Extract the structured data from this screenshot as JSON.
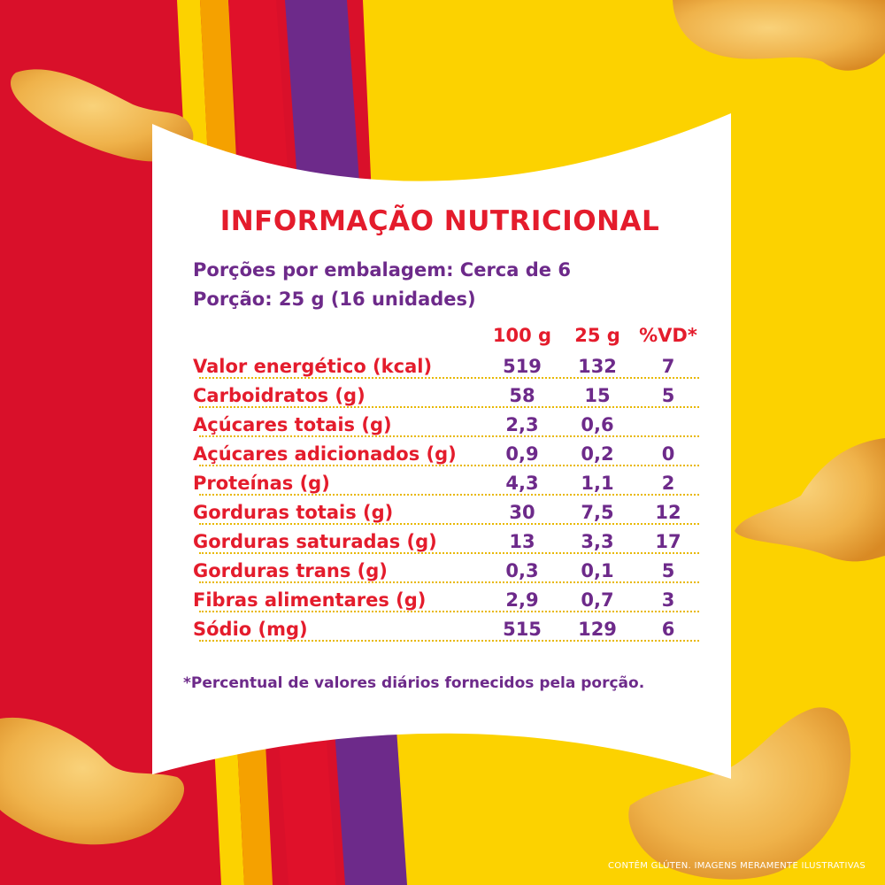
{
  "colors": {
    "red": "#d9102a",
    "yellow": "#fcd200",
    "purple": "#6d2a8a",
    "orange": "#f5a100",
    "title_red": "#e41c2c",
    "chip": "#f1b44a"
  },
  "panel": {
    "title": "INFORMAÇÃO NUTRICIONAL",
    "servings_per_package": "Porções por embalagem: Cerca de 6",
    "serving_size": "Porção:  25 g (16 unidades)",
    "column_headers": [
      "100 g",
      "25 g",
      "%VD*"
    ],
    "rows": [
      {
        "label": "Valor energético (kcal)",
        "per100": "519",
        "perPortion": "132",
        "dv": "7"
      },
      {
        "label": "Carboidratos (g)",
        "per100": "58",
        "perPortion": "15",
        "dv": "5"
      },
      {
        "label": "Açúcares totais (g)",
        "per100": "2,3",
        "perPortion": "0,6",
        "dv": ""
      },
      {
        "label": "Açúcares adicionados (g)",
        "per100": "0,9",
        "perPortion": "0,2",
        "dv": "0"
      },
      {
        "label": "Proteínas (g)",
        "per100": "4,3",
        "perPortion": "1,1",
        "dv": "2"
      },
      {
        "label": "Gorduras totais (g)",
        "per100": "30",
        "perPortion": "7,5",
        "dv": "12"
      },
      {
        "label": "Gorduras saturadas (g)",
        "per100": "13",
        "perPortion": "3,3",
        "dv": "17"
      },
      {
        "label": "Gorduras trans (g)",
        "per100": "0,3",
        "perPortion": "0,1",
        "dv": "5"
      },
      {
        "label": "Fibras alimentares (g)",
        "per100": "2,9",
        "perPortion": "0,7",
        "dv": "3"
      },
      {
        "label": "Sódio (mg)",
        "per100": "515",
        "perPortion": "129",
        "dv": "6"
      }
    ],
    "footnote": "*Percentual de valores diários fornecidos pela porção."
  },
  "disclaimer": "CONTÊM GLÚTEN. IMAGENS MERAMENTE ILUSTRATIVAS"
}
